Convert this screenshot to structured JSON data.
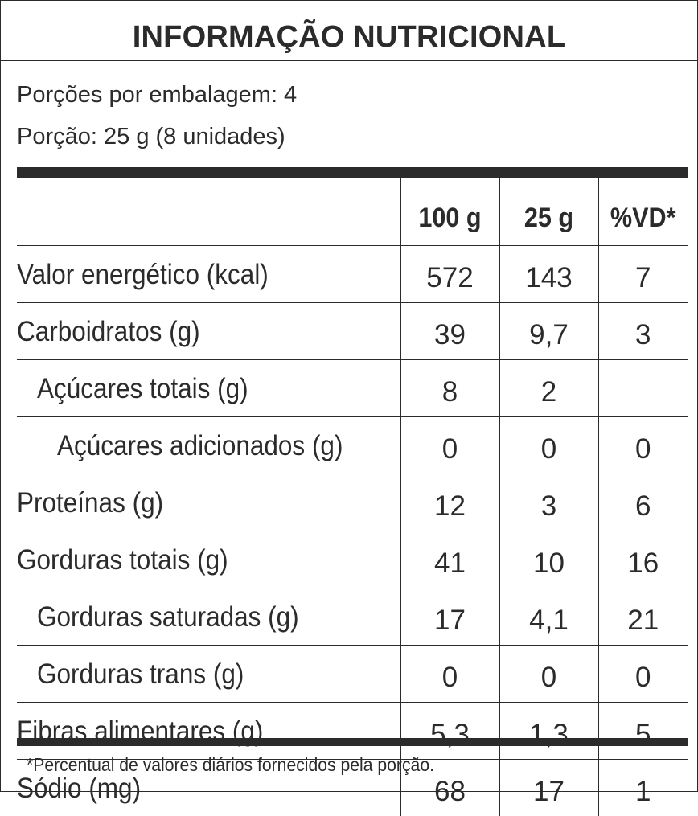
{
  "title": "INFORMAÇÃO NUTRICIONAL",
  "servings_per_package": "Porções por embalagem: 4",
  "serving_size": "Porção: 25 g (8 unidades)",
  "columns": [
    "100 g",
    "25 g",
    "%VD*"
  ],
  "rows": [
    {
      "name": "Valor energético (kcal)",
      "per100": "572",
      "per_serving": "143",
      "dv": "7"
    },
    {
      "name": "Carboidratos (g)",
      "per100": "39",
      "per_serving": "9,7",
      "dv": "3"
    },
    {
      "name": "Açúcares totais (g)",
      "per100": "8",
      "per_serving": "2",
      "dv": ""
    },
    {
      "name": "Açúcares adicionados (g)",
      "per100": "0",
      "per_serving": "0",
      "dv": "0"
    },
    {
      "name": "Proteínas (g)",
      "per100": "12",
      "per_serving": "3",
      "dv": "6"
    },
    {
      "name": "Gorduras totais (g)",
      "per100": "41",
      "per_serving": "10",
      "dv": "16"
    },
    {
      "name": "Gorduras saturadas (g)",
      "per100": "17",
      "per_serving": "4,1",
      "dv": "21"
    },
    {
      "name": "Gorduras trans (g)",
      "per100": "0",
      "per_serving": "0",
      "dv": "0"
    },
    {
      "name": "Fibras alimentares (g)",
      "per100": "5,3",
      "per_serving": "1,3",
      "dv": "5"
    },
    {
      "name": "Sódio (mg)",
      "per100": "68",
      "per_serving": "17",
      "dv": "1"
    }
  ],
  "footnote": "*Percentual de valores diários fornecidos pela porção.",
  "colors": {
    "ink": "#2b2b2b",
    "background": "#ffffff"
  }
}
